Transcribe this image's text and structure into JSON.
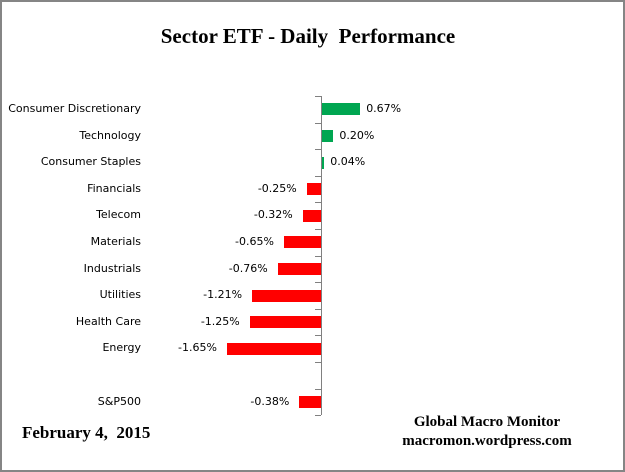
{
  "title": "Sector ETF - Daily  Performance",
  "footer": {
    "date": "February 4,  2015",
    "credit_line1": "Global Macro Monitor",
    "credit_line2": "macromon.wordpress.com"
  },
  "colors": {
    "positive_bar": "#00A651",
    "negative_bar": "#FF0000",
    "axis": "#808080",
    "border": "#858585",
    "text": "#000000"
  },
  "chart_data": {
    "type": "bar",
    "orientation": "horizontal",
    "title": "Sector ETF - Daily Performance",
    "unit": "percent",
    "grid": false,
    "legend": false,
    "xlim": [
      -2.0,
      1.0
    ],
    "gap_before_index": 10,
    "categories": [
      "Consumer Discretionary",
      "Technology",
      "Consumer Staples",
      "Financials",
      "Telecom",
      "Materials",
      "Industrials",
      "Utilities",
      "Health Care",
      "Energy",
      "S&P500"
    ],
    "values": [
      0.67,
      0.2,
      0.04,
      -0.25,
      -0.32,
      -0.65,
      -0.76,
      -1.21,
      -1.25,
      -1.65,
      -0.38
    ],
    "value_labels": [
      "0.67%",
      "0.20%",
      "0.04%",
      "-0.25%",
      "-0.32%",
      "-0.65%",
      "-0.76%",
      "-1.21%",
      "-1.25%",
      "-1.65%",
      "-0.38%"
    ]
  }
}
